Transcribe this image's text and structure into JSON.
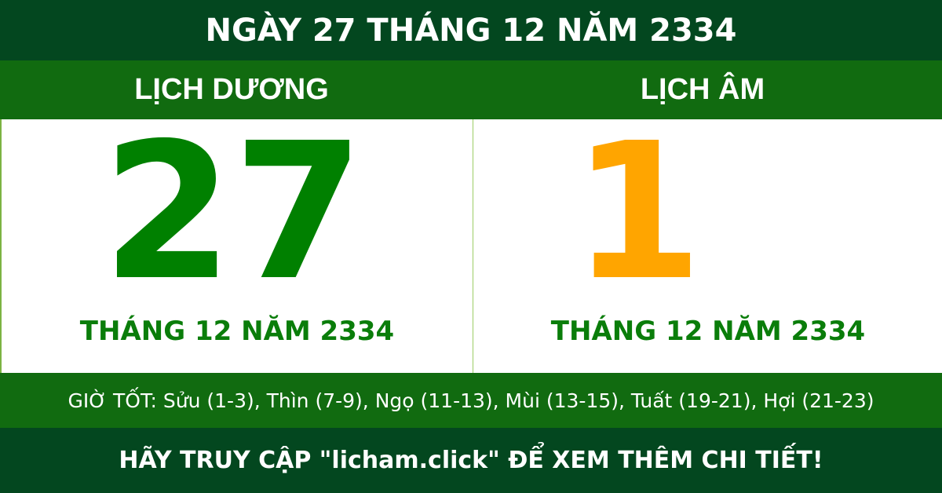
{
  "header": {
    "title": "NGÀY 27 THÁNG 12 NĂM 2334"
  },
  "solar": {
    "label": "LỊCH DƯƠNG",
    "day": "27",
    "month_year": "THÁNG 12 NĂM 2334",
    "color": "#008000"
  },
  "lunar": {
    "label": "LỊCH ÂM",
    "day": "1",
    "month_year": "THÁNG 12 NĂM 2334",
    "color": "#ffa500"
  },
  "good_hours": "GIỜ TỐT: Sửu (1-3), Thìn (7-9), Ngọ (11-13), Mùi (13-15), Tuất (19-21), Hợi (21-23)",
  "footer": {
    "cta": "HÃY TRUY CẬP \"licham.click\" ĐỂ XEM THÊM CHI TIẾT!"
  },
  "colors": {
    "dark_green": "#03471f",
    "green": "#116b10"
  }
}
